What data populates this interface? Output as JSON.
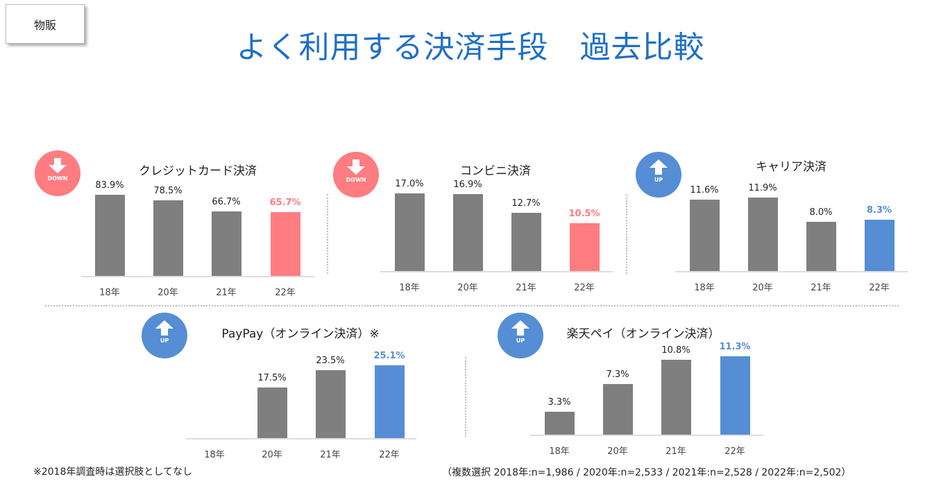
{
  "badge": "物販",
  "title": "よく利用する決済手段　過去比較",
  "colors": {
    "bar": "#7f7f7f",
    "down": "#ff7c80",
    "up": "#558ed5",
    "title": "#1f6fc8"
  },
  "chart_data": [
    {
      "type": "bar",
      "title": "クレジットカード決済",
      "trend": "DOWN",
      "categories": [
        "18年",
        "20年",
        "21年",
        "22年"
      ],
      "values": [
        83.9,
        78.5,
        66.7,
        65.7
      ],
      "labels": [
        "83.9%",
        "78.5%",
        "66.7%",
        "65.7%"
      ],
      "unit": "%"
    },
    {
      "type": "bar",
      "title": "コンビニ決済",
      "trend": "DOWN",
      "categories": [
        "18年",
        "20年",
        "21年",
        "22年"
      ],
      "values": [
        17.0,
        16.9,
        12.7,
        10.5
      ],
      "labels": [
        "17.0%",
        "16.9%",
        "12.7%",
        "10.5%"
      ],
      "unit": "%"
    },
    {
      "type": "bar",
      "title": "キャリア決済",
      "trend": "UP",
      "categories": [
        "18年",
        "20年",
        "21年",
        "22年"
      ],
      "values": [
        11.6,
        11.9,
        8.0,
        8.3
      ],
      "labels": [
        "11.6%",
        "11.9%",
        "8.0%",
        "8.3%"
      ],
      "unit": "%"
    },
    {
      "type": "bar",
      "title": "PayPay（オンライン決済）※",
      "trend": "UP",
      "categories": [
        "18年",
        "20年",
        "21年",
        "22年"
      ],
      "values": [
        null,
        17.5,
        23.5,
        25.1
      ],
      "labels": [
        "",
        "17.5%",
        "23.5%",
        "25.1%"
      ],
      "unit": "%"
    },
    {
      "type": "bar",
      "title": "楽天ペイ（オンライン決済）",
      "trend": "UP",
      "categories": [
        "18年",
        "20年",
        "21年",
        "22年"
      ],
      "values": [
        3.3,
        7.3,
        10.8,
        11.3
      ],
      "labels": [
        "3.3%",
        "7.3%",
        "10.8%",
        "11.3%"
      ],
      "unit": "%"
    }
  ],
  "footnote": "※2018年調査時は選択肢としてなし",
  "sample_note": "（複数選択 2018年:n=1,986 / 2020年:n=2,533 / 2021年:n=2,528 / 2022年:n=2,502）"
}
